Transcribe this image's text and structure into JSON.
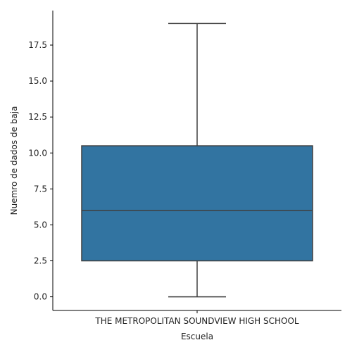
{
  "chart_data": {
    "type": "box",
    "title": "",
    "xlabel": "Escuela",
    "ylabel": "Nuemro de dados de baja",
    "categories": [
      "THE METROPOLITAN SOUNDVIEW HIGH SCHOOL"
    ],
    "boxes": [
      {
        "category": "THE METROPOLITAN SOUNDVIEW HIGH SCHOOL",
        "min": 0,
        "q1": 2.5,
        "median": 6,
        "q3": 10.5,
        "max": 19
      }
    ],
    "ylim": [
      -0.95,
      19.9
    ],
    "yticks": [
      0.0,
      2.5,
      5.0,
      7.5,
      10.0,
      12.5,
      15.0,
      17.5
    ],
    "ytick_labels": [
      "0.0",
      "2.5",
      "5.0",
      "7.5",
      "10.0",
      "12.5",
      "15.0",
      "17.5"
    ],
    "grid": false,
    "legend": "none",
    "colors": {
      "box_fill": "#3274a1",
      "line": "#3f3f3f",
      "axis": "#000000"
    }
  }
}
